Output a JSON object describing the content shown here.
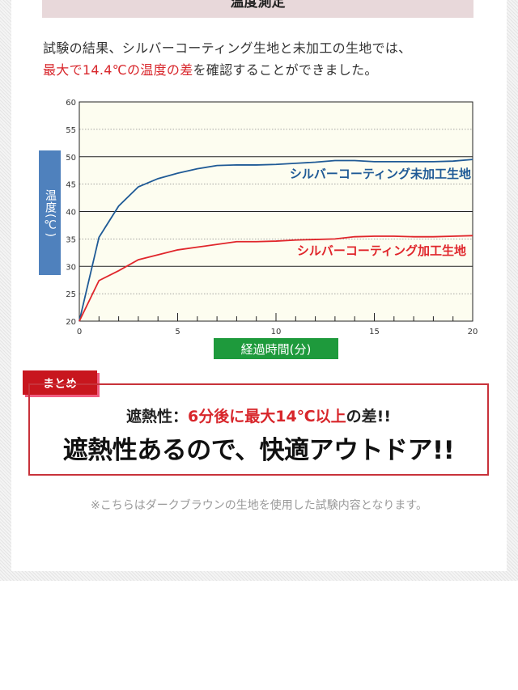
{
  "header": {
    "title": "温度測定"
  },
  "intro": {
    "line1": "試験の結果、シルバーコーティング生地と未加工の生地では、",
    "line2_red": "最大で14.4℃の温度の差",
    "line2_rest": "を確認することができました。"
  },
  "chart_data": {
    "type": "line",
    "xlabel": "経過時間(分)",
    "ylabel": "温度(℃)",
    "xlim": [
      0,
      20
    ],
    "ylim": [
      20,
      60
    ],
    "xticks": [
      "0",
      "5",
      "10",
      "15",
      "20"
    ],
    "yticks": [
      "20",
      "25",
      "30",
      "35",
      "40",
      "45",
      "50",
      "55",
      "60"
    ],
    "grid": true,
    "x": [
      0,
      1,
      2,
      3,
      4,
      5,
      6,
      7,
      8,
      9,
      10,
      11,
      12,
      13,
      14,
      15,
      16,
      17,
      18,
      19,
      20
    ],
    "series": [
      {
        "name": "シルバーコーティング未加工生地",
        "color": "#1f5a96",
        "values": [
          20,
          35.3,
          41,
          44.5,
          46,
          47,
          47.8,
          48.4,
          48.5,
          48.5,
          48.6,
          48.8,
          49,
          49.3,
          49.3,
          49.1,
          49.1,
          49.1,
          49.1,
          49.2,
          49.5
        ]
      },
      {
        "name": "シルバーコーティング加工生地",
        "color": "#e0262b",
        "values": [
          20,
          27.4,
          29.2,
          31.2,
          32.1,
          33,
          33.5,
          34,
          34.5,
          34.5,
          34.6,
          34.8,
          34.9,
          35,
          35.4,
          35.5,
          35.5,
          35.4,
          35.4,
          35.5,
          35.6
        ]
      }
    ],
    "colors": {
      "plot_bg": "#fdfdf0",
      "ylabel_bg": "#4f81bd",
      "xlabel_bg": "#1e9a3c"
    }
  },
  "summary": {
    "tag": "まとめ",
    "line1_a": "遮熱性：",
    "line1_red": "6分後に最大14℃以上",
    "line1_b": "の差!!",
    "line2": "遮熱性あるので、快適アウトドア!!"
  },
  "note": "※こちらはダークブラウンの生地を使用した試験内容となります。"
}
